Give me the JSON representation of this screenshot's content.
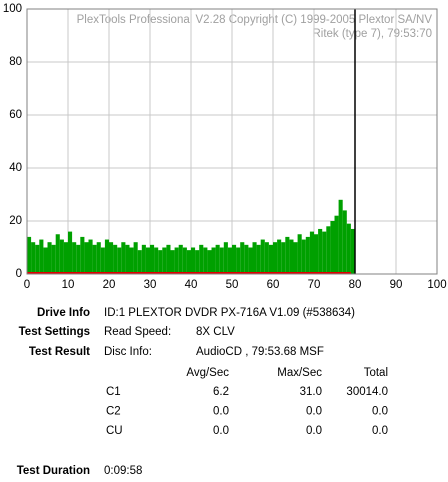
{
  "chart_data": {
    "type": "bar",
    "annotations": [
      "PlexTools Professional V2.28 Copyright (C) 1999-2005 Plextor SA/NV",
      "Ritek (type 7), 79:53:70"
    ],
    "x": [
      0,
      1,
      2,
      3,
      4,
      5,
      6,
      7,
      8,
      9,
      10,
      11,
      12,
      13,
      14,
      15,
      16,
      17,
      18,
      19,
      20,
      21,
      22,
      23,
      24,
      25,
      26,
      27,
      28,
      29,
      30,
      31,
      32,
      33,
      34,
      35,
      36,
      37,
      38,
      39,
      40,
      41,
      42,
      43,
      44,
      45,
      46,
      47,
      48,
      49,
      50,
      51,
      52,
      53,
      54,
      55,
      56,
      57,
      58,
      59,
      60,
      61,
      62,
      63,
      64,
      65,
      66,
      67,
      68,
      69,
      70,
      71,
      72,
      73,
      74,
      75,
      76,
      77,
      78,
      79
    ],
    "series": [
      {
        "name": "C1",
        "color": "#00a000",
        "values": [
          14,
          12,
          11,
          13,
          10,
          12,
          11,
          15,
          13,
          12,
          16,
          12,
          11,
          14,
          12,
          13,
          11,
          12,
          10,
          13,
          12,
          11,
          10,
          12,
          11,
          10,
          12,
          9,
          11,
          10,
          11,
          10,
          9,
          10,
          11,
          9,
          10,
          11,
          10,
          9,
          10,
          9,
          11,
          10,
          9,
          10,
          11,
          10,
          12,
          10,
          11,
          10,
          12,
          11,
          10,
          12,
          11,
          13,
          12,
          11,
          12,
          13,
          12,
          14,
          13,
          12,
          15,
          13,
          14,
          16,
          15,
          17,
          16,
          18,
          20,
          22,
          28,
          24,
          19,
          17
        ]
      },
      {
        "name": "C2",
        "color": "#e00000",
        "values": [
          0,
          0,
          0,
          0,
          0,
          0,
          0,
          0,
          0,
          0,
          0,
          0,
          0,
          0,
          0,
          0,
          0,
          0,
          0,
          0,
          0,
          0,
          0,
          0,
          0,
          0,
          0,
          0,
          0,
          0,
          0,
          0,
          0,
          0,
          0,
          0,
          0,
          0,
          0,
          0,
          0,
          0,
          0,
          0,
          0,
          0,
          0,
          0,
          0,
          0,
          0,
          0,
          0,
          0,
          0,
          0,
          0,
          0,
          0,
          0,
          0,
          0,
          0,
          0,
          0,
          0,
          0,
          0,
          0,
          0,
          0,
          0,
          0,
          0,
          0,
          0,
          0,
          0,
          0,
          0
        ]
      }
    ],
    "marker_x": 80,
    "xlim": [
      0,
      100
    ],
    "xticks": [
      0,
      10,
      20,
      30,
      40,
      50,
      60,
      70,
      80,
      90,
      100
    ],
    "ylim": [
      0,
      100
    ],
    "yticks": [
      0,
      20,
      40,
      60,
      80,
      100
    ],
    "grid": true
  },
  "info": {
    "drive_info": {
      "label": "Drive Info",
      "value": "ID:1 PLEXTOR DVDR PX-716A V1.09 (#538634)"
    },
    "test_settings": {
      "label": "Test Settings",
      "key": "Read Speed:",
      "value": "8X CLV"
    },
    "test_result": {
      "label": "Test Result",
      "key": "Disc Info:",
      "value": "AudioCD , 79:53.68 MSF"
    },
    "columns": [
      "Avg/Sec",
      "Max/Sec",
      "Total"
    ],
    "rows": [
      [
        "C1",
        "6.2",
        "31.0",
        "30014.0"
      ],
      [
        "C2",
        "0.0",
        "0.0",
        "0.0"
      ],
      [
        "CU",
        "0.0",
        "0.0",
        "0.0"
      ]
    ],
    "test_duration": {
      "label": "Test Duration",
      "value": "0:09:58"
    }
  }
}
